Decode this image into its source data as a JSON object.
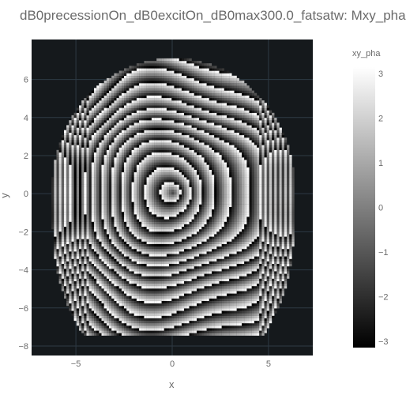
{
  "chart_data": {
    "type": "heatmap",
    "title": "dB0precessionOn_dB0excitOn_dB0max300.0_fatsatw: Mxy_pha",
    "xlabel": "x",
    "ylabel": "y",
    "xlim": [
      -7.3,
      7.3
    ],
    "ylim": [
      -8.5,
      8.1
    ],
    "x_ticks": [
      -5,
      0,
      5
    ],
    "y_ticks": [
      -8,
      -6,
      -4,
      -2,
      0,
      2,
      4,
      6
    ],
    "colorbar": {
      "title": "xy_pha",
      "range": [
        -3.14,
        3.14
      ],
      "ticks": [
        -3,
        -2,
        -1,
        0,
        1,
        2,
        3
      ],
      "colorscale": [
        "#000000",
        "#ffffff"
      ]
    },
    "background": "#15191c",
    "grid": true,
    "legend": "none"
  }
}
